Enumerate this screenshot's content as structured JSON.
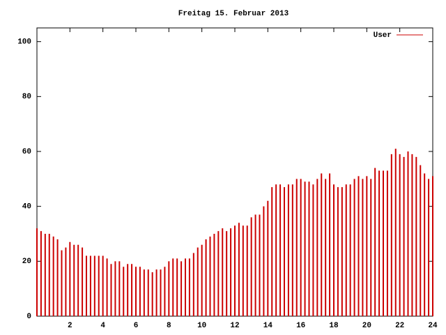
{
  "chart_data": {
    "type": "impulses",
    "title": "Freitag 15. Februar 2013",
    "x": [
      0,
      0.25,
      0.5,
      0.75,
      1,
      1.25,
      1.5,
      1.75,
      2,
      2.25,
      2.5,
      2.75,
      3,
      3.25,
      3.5,
      3.75,
      4,
      4.25,
      4.5,
      4.75,
      5,
      5.25,
      5.5,
      5.75,
      6,
      6.25,
      6.5,
      6.75,
      7,
      7.25,
      7.5,
      7.75,
      8,
      8.25,
      8.5,
      8.75,
      9,
      9.25,
      9.5,
      9.75,
      10,
      10.25,
      10.5,
      10.75,
      11,
      11.25,
      11.5,
      11.75,
      12,
      12.25,
      12.5,
      12.75,
      13,
      13.25,
      13.5,
      13.75,
      14,
      14.25,
      14.5,
      14.75,
      15,
      15.25,
      15.5,
      15.75,
      16,
      16.25,
      16.5,
      16.75,
      17,
      17.25,
      17.5,
      17.75,
      18,
      18.25,
      18.5,
      18.75,
      19,
      19.25,
      19.5,
      19.75,
      20,
      20.25,
      20.5,
      20.75,
      21,
      21.25,
      21.5,
      21.75,
      22,
      22.25,
      22.5,
      22.75,
      23,
      23.25,
      23.5,
      23.75,
      24
    ],
    "series": [
      {
        "name": "User",
        "color": "#cc0000",
        "values": [
          32,
          31,
          30,
          30,
          29,
          28,
          24,
          25,
          27,
          26,
          26,
          25,
          22,
          22,
          22,
          22,
          22,
          21,
          19,
          20,
          20,
          18,
          19,
          19,
          18,
          18,
          17,
          17,
          16,
          17,
          17,
          18,
          20,
          21,
          21,
          20,
          21,
          21,
          23,
          25,
          26,
          28,
          29,
          30,
          31,
          32,
          31,
          32,
          33,
          34,
          33,
          33,
          36,
          37,
          37,
          40,
          42,
          47,
          48,
          48,
          47,
          48,
          48,
          50,
          50,
          49,
          49,
          48,
          50,
          52,
          50,
          52,
          48,
          47,
          47,
          48,
          48,
          50,
          51,
          50,
          51,
          50,
          54,
          53,
          53,
          53,
          59,
          61,
          59,
          58,
          60,
          59,
          58,
          55,
          52,
          50,
          51
        ]
      }
    ],
    "xlim": [
      0,
      24
    ],
    "xticks": [
      2,
      4,
      6,
      8,
      10,
      12,
      14,
      16,
      18,
      20,
      22,
      24
    ],
    "ylim": [
      0,
      105
    ],
    "yticks": [
      0,
      20,
      40,
      60,
      80,
      100
    ],
    "legend": "upper right"
  }
}
